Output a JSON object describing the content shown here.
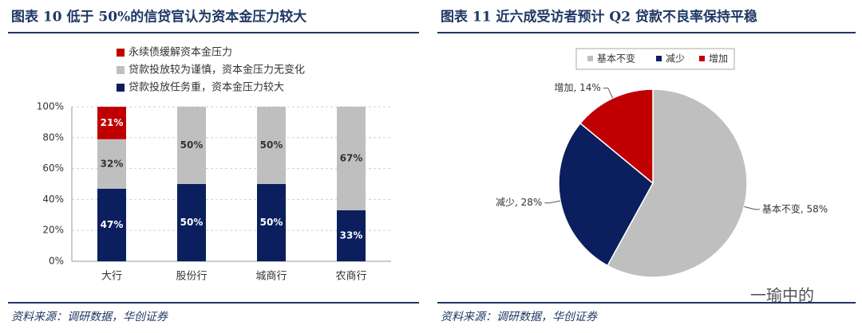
{
  "chart_data": [
    {
      "type": "bar",
      "stacked": true,
      "title": "图表 10  低于 50%的信贷官认为资本金压力较大",
      "source": "资料来源：调研数据，华创证券",
      "categories": [
        "大行",
        "股份行",
        "城商行",
        "农商行"
      ],
      "series": [
        {
          "name": "贷款投放任务重，资本金压力较大",
          "color": "#0b1f5e",
          "values": [
            47,
            50,
            50,
            33
          ],
          "value_labels": [
            "47%",
            "50%",
            "50%",
            "33%"
          ]
        },
        {
          "name": "贷款投放较为谨慎，资本金压力无变化",
          "color": "#bfbfbf",
          "values": [
            32,
            50,
            50,
            67
          ],
          "value_labels": [
            "32%",
            "50%",
            "50%",
            "67%"
          ]
        },
        {
          "name": "永续债缓解资本金压力",
          "color": "#c00000",
          "values": [
            21,
            null,
            null,
            null
          ],
          "value_labels": [
            "21%",
            null,
            null,
            null
          ]
        }
      ],
      "ylim": [
        0,
        100
      ],
      "yticks": [
        {
          "value": 0,
          "label": "0%"
        },
        {
          "value": 20,
          "label": "20%"
        },
        {
          "value": 40,
          "label": "40%"
        },
        {
          "value": 60,
          "label": "60%"
        },
        {
          "value": 80,
          "label": "80%"
        },
        {
          "value": 100,
          "label": "100%"
        }
      ],
      "grid": true
    },
    {
      "type": "pie",
      "title": "图表 11  近六成受访者预计 Q2 贷款不良率保持平稳",
      "source": "资料来源：调研数据，华创证券",
      "categories": [
        "基本不变",
        "减少",
        "增加"
      ],
      "colors": [
        "#bfbfbf",
        "#0b1f5e",
        "#c00000"
      ],
      "values": [
        58,
        28,
        14
      ],
      "value_labels": [
        "基本不变, 58%",
        "减少, 28%",
        "增加, 14%"
      ]
    }
  ],
  "watermark": "一瑜中的"
}
